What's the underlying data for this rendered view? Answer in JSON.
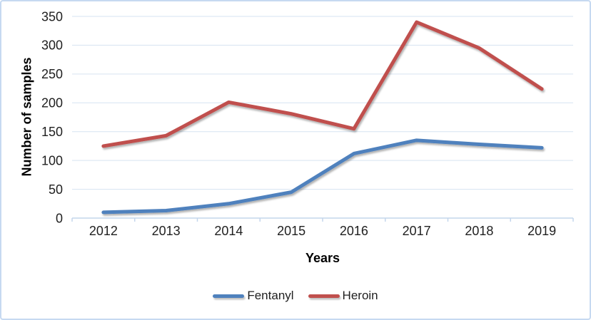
{
  "frame": {
    "background": "#FFFFFF",
    "border_color": "#C6D9F1"
  },
  "chart_data": {
    "type": "line",
    "categories": [
      "2012",
      "2013",
      "2014",
      "2015",
      "2016",
      "2017",
      "2018",
      "2019"
    ],
    "series": [
      {
        "name": "Fentanyl",
        "color": "#4F81BD",
        "values": [
          10,
          13,
          25,
          45,
          112,
          135,
          128,
          122
        ]
      },
      {
        "name": "Heroin",
        "color": "#C0504D",
        "values": [
          125,
          143,
          201,
          181,
          155,
          340,
          295,
          224
        ]
      }
    ],
    "xlabel": "Years",
    "ylabel": "Number of samples",
    "ylim": [
      0,
      350
    ],
    "ytick_step": 50,
    "yticks": [
      "0",
      "50",
      "100",
      "150",
      "200",
      "250",
      "300",
      "350"
    ],
    "grid": "horizontal",
    "gridline_color": "#D6E3F1",
    "axis_line_color": "#C4D6EC",
    "text_color": "#1F1F1F",
    "legend_position": "bottom"
  }
}
